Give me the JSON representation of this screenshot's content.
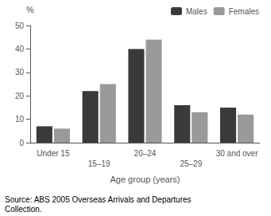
{
  "chart_data": {
    "type": "bar",
    "categories": [
      "Under 15",
      "15–19",
      "20–24",
      "25–29",
      "30 and over"
    ],
    "series": [
      {
        "name": "Males",
        "color": "#3a3a3a",
        "values": [
          7,
          22,
          40,
          16,
          15
        ]
      },
      {
        "name": "Females",
        "color": "#999999",
        "values": [
          6,
          25,
          44,
          13,
          12
        ]
      }
    ],
    "xlabel": "Age group (years)",
    "ylabel": "%",
    "ylim": [
      0,
      50
    ],
    "yticks": [
      0,
      10,
      20,
      30,
      40,
      50
    ],
    "grid": false,
    "legend": "upper right",
    "annotations": [
      "Source: ABS 2005 Overseas Arrivals and Departures\nCollection."
    ]
  }
}
